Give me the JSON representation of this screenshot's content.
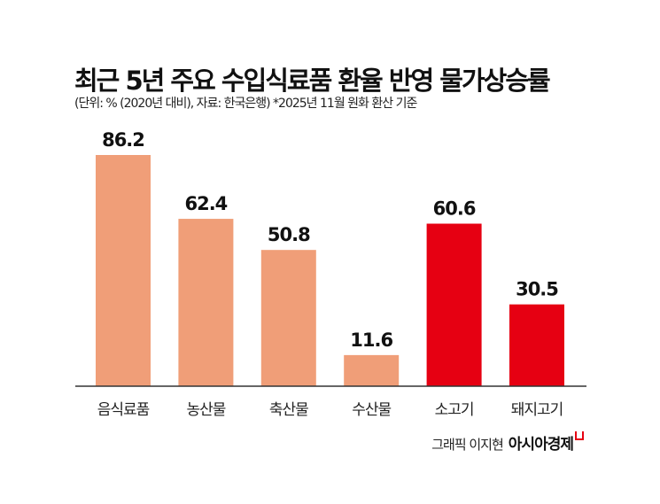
{
  "chart_data": {
    "type": "bar",
    "title": "최근 5년 주요 수입식료품 환율 반영 물가상승률",
    "subtitle": "(단위: % (2020년 대비), 자료: 한국은행)  *2025년 11월 원화 환산 기준",
    "categories": [
      "음식료품",
      "농산물",
      "축산물",
      "수산물",
      "소고기",
      "돼지고기"
    ],
    "values": [
      86.2,
      62.4,
      50.8,
      11.6,
      60.6,
      30.5
    ],
    "bar_colors": [
      "#f09e78",
      "#f09e78",
      "#f09e78",
      "#f09e78",
      "#e60012",
      "#e60012"
    ],
    "ylim": [
      0,
      90
    ],
    "grid": false,
    "data_labels": true
  },
  "credit": {
    "author": "그래픽 이지현",
    "brand": "아시아경제"
  }
}
